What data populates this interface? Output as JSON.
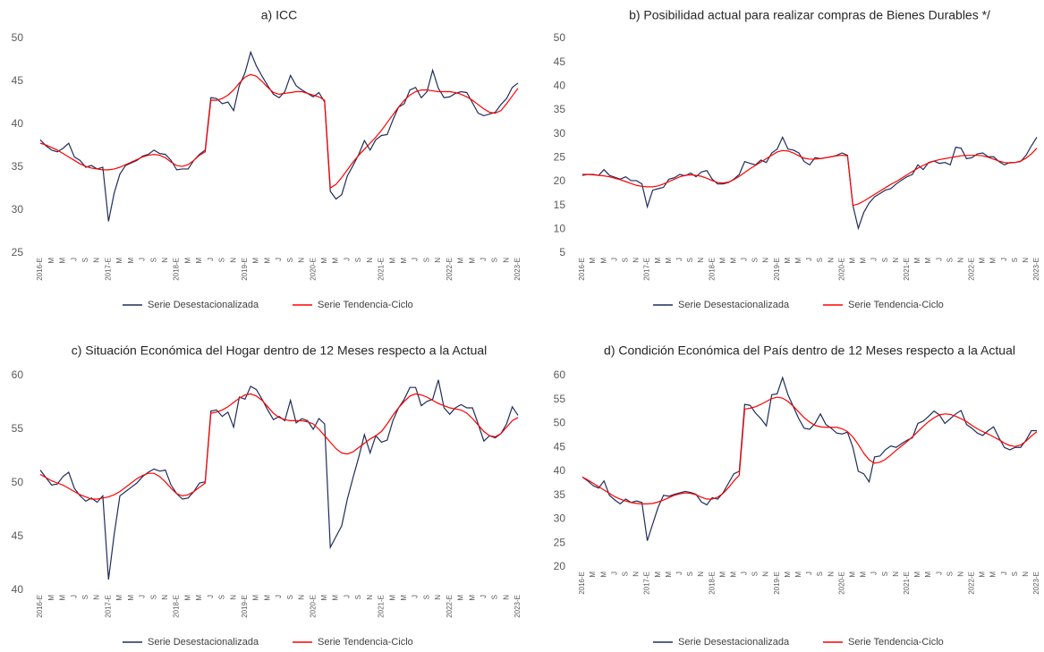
{
  "chart_data": [
    {
      "type": "line",
      "title": "a) ICC",
      "categories": [
        "2016-E",
        null,
        "M",
        null,
        "M",
        null,
        "J",
        null,
        "S",
        null,
        "N",
        null,
        "2017-E",
        null,
        "M",
        null,
        "M",
        null,
        "J",
        null,
        "S",
        null,
        "N",
        null,
        "2018-E",
        null,
        "M",
        null,
        "M",
        null,
        "J",
        null,
        "S",
        null,
        "N",
        null,
        "2019-E",
        null,
        "M",
        null,
        "M",
        null,
        "J",
        null,
        "S",
        null,
        "N",
        null,
        "2020-E",
        null,
        "M",
        null,
        "M",
        null,
        "J",
        null,
        "S",
        null,
        "N",
        null,
        "2021-E",
        null,
        "M",
        null,
        "M",
        null,
        "J",
        null,
        "S",
        null,
        "N",
        null,
        "2022-E",
        null,
        "M",
        null,
        "M",
        null,
        "J",
        null,
        "S",
        null,
        "N",
        null,
        "2023-E"
      ],
      "series": [
        {
          "name": "Serie Desestacionalizada",
          "color": "#1f2d5a",
          "values": [
            38.2,
            37.5,
            37.0,
            36.8,
            37.2,
            37.8,
            36.2,
            35.8,
            35.0,
            35.2,
            34.8,
            35.0,
            28.7,
            32.0,
            34.2,
            35.2,
            35.5,
            35.8,
            36.3,
            36.5,
            37.0,
            36.6,
            36.5,
            35.8,
            34.7,
            34.8,
            34.8,
            35.8,
            36.5,
            37.0,
            43.1,
            43.0,
            42.4,
            42.6,
            41.6,
            44.5,
            46.0,
            48.4,
            46.8,
            45.6,
            44.5,
            43.5,
            43.1,
            43.8,
            45.7,
            44.5,
            44.0,
            43.6,
            43.2,
            43.7,
            42.6,
            32.2,
            31.3,
            31.8,
            34.0,
            35.2,
            36.5,
            38.1,
            37.0,
            38.2,
            38.7,
            38.8,
            40.5,
            42.0,
            42.4,
            44.0,
            44.3,
            43.1,
            43.8,
            46.3,
            44.2,
            43.1,
            43.2,
            43.6,
            43.8,
            43.7,
            42.5,
            41.3,
            41.0,
            41.2,
            41.4,
            42.3,
            43.0,
            44.3,
            44.8
          ]
        },
        {
          "name": "Serie Tendencia-Ciclo",
          "color": "#ff0000",
          "values": [
            37.8,
            37.6,
            37.3,
            37.0,
            36.6,
            36.2,
            35.8,
            35.4,
            35.1,
            34.9,
            34.8,
            34.7,
            34.7,
            34.8,
            35.0,
            35.3,
            35.6,
            35.9,
            36.2,
            36.4,
            36.5,
            36.4,
            36.1,
            35.6,
            35.2,
            35.1,
            35.3,
            35.8,
            36.4,
            36.8,
            42.8,
            42.8,
            43.0,
            43.4,
            44.0,
            44.8,
            45.5,
            45.8,
            45.6,
            45.0,
            44.3,
            43.7,
            43.5,
            43.6,
            43.7,
            43.8,
            43.8,
            43.6,
            43.4,
            43.2,
            42.8,
            32.6,
            33.0,
            33.8,
            34.7,
            35.6,
            36.4,
            37.1,
            37.8,
            38.5,
            39.3,
            40.2,
            41.1,
            42.0,
            42.8,
            43.4,
            43.8,
            44.0,
            44.0,
            43.9,
            43.8,
            43.8,
            43.8,
            43.7,
            43.5,
            43.2,
            42.8,
            42.3,
            41.8,
            41.4,
            41.3,
            41.6,
            42.4,
            43.3,
            44.2
          ]
        }
      ],
      "ylim": [
        25,
        50
      ],
      "yticks": [
        25,
        30,
        35,
        40,
        45,
        50
      ]
    },
    {
      "type": "line",
      "title": "b) Posibilidad actual para realizar compras de Bienes Durables */",
      "categories": [
        "2016-E",
        null,
        "M",
        null,
        "M",
        null,
        "J",
        null,
        "S",
        null,
        "N",
        null,
        "2017-E",
        null,
        "M",
        null,
        "M",
        null,
        "J",
        null,
        "S",
        null,
        "N",
        null,
        "2018-E",
        null,
        "M",
        null,
        "M",
        null,
        "J",
        null,
        "S",
        null,
        "N",
        null,
        "2019-E",
        null,
        "M",
        null,
        "M",
        null,
        "J",
        null,
        "S",
        null,
        "N",
        null,
        "2020-E",
        null,
        "M",
        null,
        "M",
        null,
        "J",
        null,
        "S",
        null,
        "N",
        null,
        "2021-E",
        null,
        "M",
        null,
        "M",
        null,
        "J",
        null,
        "S",
        null,
        "N",
        null,
        "2022-E",
        null,
        "M",
        null,
        "M",
        null,
        "J",
        null,
        "S",
        null,
        "N",
        null,
        "2023-E"
      ],
      "series": [
        {
          "name": "Serie Desestacionalizada",
          "color": "#1f2d5a",
          "values": [
            21.3,
            21.5,
            21.5,
            21.3,
            22.5,
            21.3,
            20.9,
            20.5,
            21.0,
            20.2,
            20.2,
            19.5,
            14.7,
            18.2,
            18.5,
            18.8,
            20.5,
            20.8,
            21.5,
            21.2,
            21.8,
            21.0,
            22.0,
            22.3,
            20.5,
            19.5,
            19.5,
            19.8,
            20.5,
            21.5,
            24.2,
            23.8,
            23.5,
            24.5,
            24.0,
            26.0,
            26.8,
            29.3,
            26.8,
            26.6,
            26.0,
            24.2,
            23.5,
            25.0,
            24.8,
            25.0,
            25.2,
            25.5,
            26.0,
            25.5,
            15.0,
            10.2,
            13.5,
            15.5,
            16.8,
            17.5,
            18.2,
            18.5,
            19.5,
            20.3,
            21.0,
            21.5,
            23.5,
            22.5,
            24.0,
            24.3,
            23.8,
            24.0,
            23.5,
            27.2,
            27.0,
            24.8,
            25.0,
            25.8,
            26.0,
            25.2,
            25.2,
            24.2,
            23.5,
            24.0,
            24.0,
            24.2,
            25.5,
            27.5,
            29.3
          ]
        },
        {
          "name": "Serie Tendencia-Ciclo",
          "color": "#ff0000",
          "values": [
            21.5,
            21.5,
            21.4,
            21.3,
            21.2,
            21.0,
            20.7,
            20.4,
            20.0,
            19.6,
            19.2,
            19.0,
            18.9,
            18.9,
            19.1,
            19.5,
            20.0,
            20.5,
            21.0,
            21.3,
            21.4,
            21.3,
            21.1,
            20.7,
            20.2,
            19.8,
            19.7,
            19.9,
            20.4,
            21.1,
            21.9,
            22.7,
            23.4,
            24.1,
            24.8,
            25.5,
            26.2,
            26.5,
            26.4,
            26.0,
            25.4,
            24.9,
            24.7,
            24.7,
            24.8,
            25.0,
            25.2,
            25.4,
            25.5,
            25.4,
            15.0,
            15.3,
            15.9,
            16.6,
            17.3,
            18.0,
            18.7,
            19.4,
            20.0,
            20.7,
            21.4,
            22.1,
            22.8,
            23.4,
            23.9,
            24.3,
            24.6,
            24.8,
            25.0,
            25.2,
            25.4,
            25.5,
            25.5,
            25.5,
            25.4,
            25.1,
            24.7,
            24.3,
            24.0,
            23.9,
            24.0,
            24.3,
            24.9,
            25.8,
            27.0
          ]
        }
      ],
      "ylim": [
        5,
        50
      ],
      "yticks": [
        5,
        10,
        15,
        20,
        25,
        30,
        35,
        40,
        45,
        50
      ]
    },
    {
      "type": "line",
      "title": "c) Situación Económica del Hogar dentro de 12 Meses respecto a la Actual",
      "categories": [
        "2016-E",
        null,
        "M",
        null,
        "M",
        null,
        "J",
        null,
        "S",
        null,
        "N",
        null,
        "2017-E",
        null,
        "M",
        null,
        "M",
        null,
        "J",
        null,
        "S",
        null,
        "N",
        null,
        "2018-E",
        null,
        "M",
        null,
        "M",
        null,
        "J",
        null,
        "S",
        null,
        "N",
        null,
        "2019-E",
        null,
        "M",
        null,
        "M",
        null,
        "J",
        null,
        "S",
        null,
        "N",
        null,
        "2020-E",
        null,
        "M",
        null,
        "M",
        null,
        "J",
        null,
        "S",
        null,
        "N",
        null,
        "2021-E",
        null,
        "M",
        null,
        "M",
        null,
        "J",
        null,
        "S",
        null,
        "N",
        null,
        "2022-E",
        null,
        "M",
        null,
        "M",
        null,
        "J",
        null,
        "S",
        null,
        "N",
        null,
        "2023-E"
      ],
      "series": [
        {
          "name": "Serie Desestacionalizada",
          "color": "#1f2d5a",
          "values": [
            51.2,
            50.5,
            49.8,
            49.9,
            50.6,
            51.0,
            49.5,
            48.8,
            48.3,
            48.6,
            48.2,
            48.8,
            41.0,
            45.2,
            48.8,
            49.2,
            49.6,
            50.0,
            50.6,
            51.0,
            51.3,
            51.1,
            51.2,
            49.8,
            49.0,
            48.5,
            48.6,
            49.2,
            50.0,
            50.1,
            56.7,
            56.8,
            56.2,
            56.6,
            55.2,
            58.0,
            57.8,
            59.0,
            58.7,
            57.8,
            56.8,
            55.9,
            56.2,
            55.8,
            57.7,
            55.6,
            56.0,
            55.8,
            55.0,
            56.0,
            55.5,
            44.0,
            45.0,
            46.0,
            48.5,
            50.5,
            52.4,
            54.5,
            52.8,
            54.4,
            53.8,
            54.0,
            55.8,
            57.0,
            57.8,
            58.9,
            58.9,
            57.2,
            57.6,
            57.8,
            59.6,
            57.0,
            56.4,
            57.0,
            57.3,
            57.0,
            57.0,
            55.5,
            53.9,
            54.4,
            54.2,
            54.6,
            55.5,
            57.1,
            56.3
          ]
        },
        {
          "name": "Serie Tendencia-Ciclo",
          "color": "#ff0000",
          "values": [
            50.8,
            50.5,
            50.2,
            50.0,
            49.8,
            49.5,
            49.2,
            48.9,
            48.7,
            48.5,
            48.5,
            48.6,
            48.7,
            48.9,
            49.2,
            49.6,
            50.0,
            50.4,
            50.7,
            50.9,
            50.9,
            50.6,
            50.1,
            49.5,
            49.0,
            48.8,
            48.9,
            49.2,
            49.6,
            50.0,
            56.5,
            56.6,
            56.8,
            57.1,
            57.5,
            57.9,
            58.2,
            58.3,
            58.1,
            57.7,
            57.1,
            56.5,
            56.1,
            55.9,
            55.8,
            55.8,
            55.8,
            55.7,
            55.5,
            55.0,
            54.4,
            53.8,
            53.2,
            52.8,
            52.7,
            52.9,
            53.3,
            53.7,
            54.1,
            54.4,
            54.8,
            55.5,
            56.3,
            57.0,
            57.6,
            58.1,
            58.3,
            58.2,
            58.0,
            57.7,
            57.4,
            57.2,
            57.0,
            56.9,
            56.8,
            56.5,
            56.0,
            55.4,
            54.8,
            54.4,
            54.3,
            54.6,
            55.2,
            55.8,
            56.1
          ]
        }
      ],
      "ylim": [
        40,
        60
      ],
      "yticks": [
        40,
        45,
        50,
        55,
        60
      ]
    },
    {
      "type": "line",
      "title": "d) Condición Económica del País dentro de 12 Meses respecto a la Actual",
      "categories": [
        "2016-E",
        null,
        "M",
        null,
        "M",
        null,
        "J",
        null,
        "S",
        null,
        "N",
        null,
        "2017-E",
        null,
        "M",
        null,
        "M",
        null,
        "J",
        null,
        "S",
        null,
        "N",
        null,
        "2018-E",
        null,
        "M",
        null,
        "M",
        null,
        "J",
        null,
        "S",
        null,
        "N",
        null,
        "2019-E",
        null,
        "M",
        null,
        "M",
        null,
        "J",
        null,
        "S",
        null,
        "N",
        null,
        "2020-E",
        null,
        "M",
        null,
        "M",
        null,
        "J",
        null,
        "S",
        null,
        "N",
        null,
        "2021-E",
        null,
        "M",
        null,
        "M",
        null,
        "J",
        null,
        "S",
        null,
        "N",
        null,
        "2022-E",
        null,
        "M",
        null,
        "M",
        null,
        "J",
        null,
        "S",
        null,
        "N",
        null,
        "2023-E"
      ],
      "series": [
        {
          "name": "Serie Desestacionalizada",
          "color": "#1f2d5a",
          "values": [
            38.8,
            38.0,
            37.0,
            36.5,
            38.0,
            35.0,
            34.0,
            33.2,
            34.2,
            33.5,
            33.8,
            33.5,
            25.5,
            29.0,
            32.5,
            35.0,
            34.8,
            35.2,
            35.5,
            35.8,
            35.6,
            35.2,
            33.6,
            33.0,
            34.5,
            34.2,
            35.5,
            37.5,
            39.5,
            40.0,
            54.0,
            53.8,
            52.2,
            51.0,
            49.5,
            56.0,
            56.2,
            59.6,
            56.0,
            53.5,
            51.0,
            49.0,
            48.8,
            50.0,
            52.0,
            49.8,
            49.0,
            48.0,
            47.8,
            48.2,
            45.0,
            40.0,
            39.5,
            37.8,
            43.0,
            43.2,
            44.5,
            45.3,
            45.0,
            45.8,
            46.5,
            47.0,
            50.0,
            50.5,
            51.5,
            52.6,
            51.8,
            50.0,
            51.0,
            52.0,
            52.7,
            49.8,
            49.0,
            48.0,
            47.5,
            48.5,
            49.3,
            47.0,
            45.0,
            44.5,
            45.0,
            45.0,
            46.5,
            48.5,
            48.5
          ]
        },
        {
          "name": "Serie Tendencia-Ciclo",
          "color": "#ff0000",
          "values": [
            38.8,
            38.2,
            37.5,
            36.8,
            36.1,
            35.4,
            34.7,
            34.2,
            33.8,
            33.5,
            33.3,
            33.2,
            33.2,
            33.3,
            33.6,
            34.0,
            34.5,
            35.0,
            35.3,
            35.5,
            35.4,
            35.1,
            34.6,
            34.2,
            34.2,
            34.6,
            35.4,
            36.6,
            38.0,
            39.2,
            53.0,
            53.2,
            53.5,
            54.0,
            54.6,
            55.2,
            55.5,
            55.3,
            54.6,
            53.6,
            52.4,
            51.2,
            50.3,
            49.6,
            49.3,
            49.2,
            49.2,
            49.2,
            48.9,
            48.3,
            47.2,
            45.6,
            43.8,
            42.4,
            41.7,
            41.9,
            42.5,
            43.4,
            44.4,
            45.3,
            46.2,
            47.2,
            48.3,
            49.4,
            50.4,
            51.2,
            51.8,
            52.0,
            51.9,
            51.5,
            51.0,
            50.4,
            49.6,
            48.9,
            48.3,
            47.8,
            47.2,
            46.6,
            45.9,
            45.4,
            45.2,
            45.5,
            46.3,
            47.4,
            48.3
          ]
        }
      ],
      "ylim": [
        20,
        60
      ],
      "yticks": [
        20,
        25,
        30,
        35,
        40,
        45,
        50,
        55,
        60
      ]
    }
  ]
}
